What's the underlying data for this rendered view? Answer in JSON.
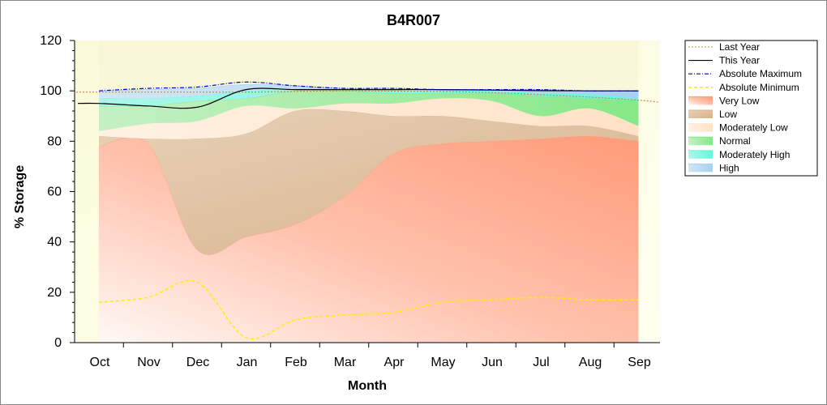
{
  "chart_data": {
    "type": "area",
    "title": "B4R007",
    "xlabel": "Month",
    "ylabel": "% Storage",
    "ylim": [
      0,
      120
    ],
    "yticks": [
      0,
      20,
      40,
      60,
      80,
      100,
      120
    ],
    "categories": [
      "Oct",
      "Nov",
      "Dec",
      "Jan",
      "Feb",
      "Mar",
      "Apr",
      "May",
      "Jun",
      "Jul",
      "Aug",
      "Sep"
    ],
    "legend_position": "right",
    "bands": [
      {
        "name": "Very Low",
        "color": "#ff9f80",
        "lower": [
          0,
          0,
          0,
          0,
          0,
          0,
          0,
          0,
          0,
          0,
          0,
          0
        ],
        "upper": [
          78,
          79,
          37,
          42,
          47,
          58,
          75,
          79,
          80,
          81,
          82,
          80
        ]
      },
      {
        "name": "Low",
        "color": "#d9b48f",
        "lower": [
          78,
          79,
          37,
          42,
          47,
          58,
          75,
          79,
          80,
          81,
          82,
          80
        ],
        "upper": [
          82,
          81,
          81,
          83,
          92,
          92,
          90,
          90,
          88,
          86,
          86,
          82
        ]
      },
      {
        "name": "Moderately Low",
        "color": "#ffe6cc",
        "lower": [
          82,
          81,
          81,
          83,
          92,
          92,
          90,
          90,
          88,
          86,
          86,
          82
        ],
        "upper": [
          84,
          87,
          88,
          94,
          93,
          95,
          95,
          97,
          96,
          90,
          93,
          86
        ]
      },
      {
        "name": "Normal",
        "color": "#80e680",
        "lower": [
          84,
          87,
          88,
          94,
          93,
          95,
          95,
          97,
          96,
          90,
          93,
          86
        ],
        "upper": [
          94,
          94,
          96,
          97,
          100,
          100,
          99,
          99,
          99,
          98,
          97,
          96
        ]
      },
      {
        "name": "Moderately High",
        "color": "#66ffdd",
        "lower": [
          94,
          94,
          96,
          97,
          100,
          100,
          99,
          99,
          99,
          98,
          97,
          96
        ],
        "upper": [
          97,
          97,
          98,
          100,
          101,
          100.5,
          100,
          100,
          100,
          99,
          98.5,
          97
        ]
      },
      {
        "name": "High",
        "color": "#a6d1f2",
        "lower": [
          97,
          97,
          98,
          100,
          101,
          100.5,
          100,
          100,
          100,
          99,
          98.5,
          97
        ],
        "upper": [
          100,
          100.5,
          101,
          102.5,
          102,
          101,
          101,
          100.5,
          100.5,
          100.5,
          100,
          100
        ]
      }
    ],
    "series": [
      {
        "name": "Last Year",
        "color": "#cc8844",
        "style": "dotted",
        "values": [
          99.5,
          99.5,
          99.5,
          99.5,
          99.8,
          100,
          99.9,
          99.8,
          99.3,
          98.5,
          97.5,
          96.3
        ]
      },
      {
        "name": "This Year",
        "color": "#000000",
        "style": "solid",
        "values": [
          95,
          94,
          93.5,
          100.5,
          100.5,
          100.5,
          100.5,
          100.5,
          100.3,
          100.1,
          100,
          100
        ]
      },
      {
        "name": "Absolute Maximum",
        "color": "#0000cc",
        "style": "dashdot",
        "values": [
          100,
          101,
          101.5,
          103.5,
          102,
          101,
          101,
          100.5,
          100.5,
          100.5,
          100,
          100
        ]
      },
      {
        "name": "Absolute Minimum",
        "color": "#ffee00",
        "style": "dashed",
        "values": [
          16,
          18,
          24,
          2,
          9,
          11,
          12,
          16,
          17,
          18,
          17,
          17
        ]
      }
    ]
  }
}
